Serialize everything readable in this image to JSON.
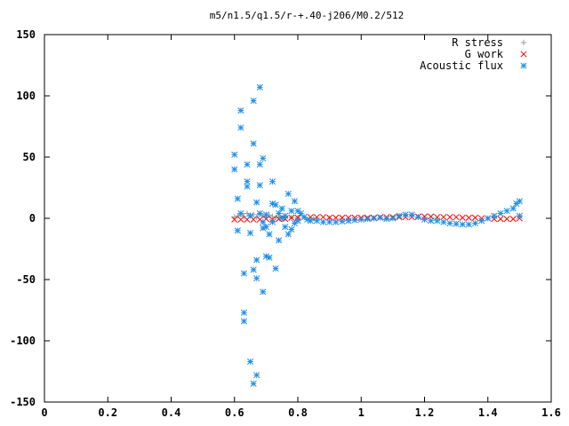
{
  "chart_data": {
    "type": "scatter",
    "title": "m5/n1.5/q1.5/r-+.40-j206/M0.2/512",
    "xlabel": "",
    "ylabel": "",
    "xlim": [
      0,
      1.6
    ],
    "ylim": [
      -150,
      150
    ],
    "x_ticks": [
      "0",
      "0.2",
      "0.4",
      "0.6",
      "0.8",
      "1",
      "1.2",
      "1.4",
      "1.6"
    ],
    "y_ticks": [
      "150",
      "100",
      "50",
      "0",
      "-50",
      "-100",
      "-150"
    ],
    "grid": false,
    "legend_position": "top-right",
    "series": [
      {
        "name": "R stress",
        "marker": "+",
        "color": "#a0a0a0",
        "points": [
          [
            0.6,
            1.0
          ],
          [
            0.61,
            2.0
          ],
          [
            0.62,
            3.0
          ],
          [
            0.63,
            1.5
          ],
          [
            0.64,
            4.0
          ],
          [
            0.65,
            2.5
          ],
          [
            0.66,
            3.0
          ],
          [
            0.67,
            1.0
          ],
          [
            0.68,
            3.5
          ],
          [
            0.69,
            2.0
          ],
          [
            0.7,
            1.0
          ],
          [
            0.71,
            2.5
          ],
          [
            0.72,
            1.5
          ],
          [
            0.73,
            0.5
          ],
          [
            0.74,
            1.0
          ],
          [
            0.76,
            0.5
          ],
          [
            0.78,
            0.5
          ],
          [
            0.8,
            0.3
          ],
          [
            0.85,
            0.1
          ],
          [
            0.9,
            0.0
          ]
        ]
      },
      {
        "name": "G work",
        "marker": "x",
        "color": "#ff0000",
        "points": [
          [
            0.6,
            -1.0
          ],
          [
            0.62,
            -1.0
          ],
          [
            0.64,
            -1.0
          ],
          [
            0.66,
            -1.0
          ],
          [
            0.68,
            -1.0
          ],
          [
            0.7,
            -0.5
          ],
          [
            0.72,
            -1.0
          ],
          [
            0.74,
            -0.5
          ],
          [
            0.76,
            -0.5
          ],
          [
            0.78,
            0.5
          ],
          [
            0.8,
            0.5
          ],
          [
            0.82,
            1.0
          ],
          [
            0.84,
            1.0
          ],
          [
            0.86,
            1.0
          ],
          [
            0.88,
            1.0
          ],
          [
            0.9,
            0.5
          ],
          [
            0.92,
            0.5
          ],
          [
            0.94,
            0.5
          ],
          [
            0.96,
            0.5
          ],
          [
            0.98,
            0.5
          ],
          [
            1.0,
            0.5
          ],
          [
            1.02,
            0.5
          ],
          [
            1.04,
            0.5
          ],
          [
            1.06,
            1.0
          ],
          [
            1.08,
            1.0
          ],
          [
            1.1,
            1.0
          ],
          [
            1.12,
            1.0
          ],
          [
            1.14,
            1.0
          ],
          [
            1.16,
            1.0
          ],
          [
            1.18,
            1.5
          ],
          [
            1.2,
            1.5
          ],
          [
            1.22,
            1.5
          ],
          [
            1.24,
            1.0
          ],
          [
            1.26,
            1.0
          ],
          [
            1.28,
            1.0
          ],
          [
            1.3,
            1.0
          ],
          [
            1.32,
            0.5
          ],
          [
            1.34,
            0.5
          ],
          [
            1.36,
            0.5
          ],
          [
            1.38,
            0.0
          ],
          [
            1.4,
            0.0
          ],
          [
            1.42,
            -0.5
          ],
          [
            1.44,
            -0.5
          ],
          [
            1.46,
            -0.5
          ],
          [
            1.48,
            -0.5
          ],
          [
            1.5,
            0.0
          ]
        ]
      },
      {
        "name": "Acoustic flux",
        "marker": "*",
        "color": "#1e8fe6",
        "points": [
          [
            0.6,
            52
          ],
          [
            0.6,
            40
          ],
          [
            0.61,
            16
          ],
          [
            0.61,
            -10
          ],
          [
            0.62,
            4
          ],
          [
            0.62,
            88
          ],
          [
            0.62,
            74
          ],
          [
            0.63,
            -45
          ],
          [
            0.63,
            -77
          ],
          [
            0.63,
            -84
          ],
          [
            0.64,
            44
          ],
          [
            0.64,
            30
          ],
          [
            0.64,
            26
          ],
          [
            0.65,
            2
          ],
          [
            0.65,
            -12
          ],
          [
            0.65,
            -117
          ],
          [
            0.66,
            61
          ],
          [
            0.66,
            96
          ],
          [
            0.66,
            -42
          ],
          [
            0.66,
            -135
          ],
          [
            0.67,
            13
          ],
          [
            0.67,
            -34
          ],
          [
            0.67,
            -128
          ],
          [
            0.67,
            -49
          ],
          [
            0.68,
            107
          ],
          [
            0.68,
            44
          ],
          [
            0.68,
            27
          ],
          [
            0.68,
            4
          ],
          [
            0.69,
            49
          ],
          [
            0.69,
            -3
          ],
          [
            0.69,
            -8
          ],
          [
            0.69,
            -60
          ],
          [
            0.7,
            -7
          ],
          [
            0.7,
            -31
          ],
          [
            0.7,
            3
          ],
          [
            0.71,
            -13
          ],
          [
            0.71,
            -32
          ],
          [
            0.72,
            30
          ],
          [
            0.72,
            12
          ],
          [
            0.72,
            -3
          ],
          [
            0.73,
            -41
          ],
          [
            0.73,
            11
          ],
          [
            0.74,
            4
          ],
          [
            0.74,
            -18
          ],
          [
            0.75,
            0
          ],
          [
            0.75,
            8
          ],
          [
            0.76,
            -7
          ],
          [
            0.76,
            2
          ],
          [
            0.77,
            -13
          ],
          [
            0.77,
            20
          ],
          [
            0.78,
            6
          ],
          [
            0.78,
            -9
          ],
          [
            0.79,
            14
          ],
          [
            0.79,
            -4
          ],
          [
            0.8,
            6
          ],
          [
            0.8,
            -2
          ],
          [
            0.81,
            4
          ],
          [
            0.82,
            1
          ],
          [
            0.83,
            -1
          ],
          [
            0.84,
            -2
          ],
          [
            0.86,
            -2
          ],
          [
            0.88,
            -3
          ],
          [
            0.9,
            -3
          ],
          [
            0.92,
            -3
          ],
          [
            0.94,
            -2.5
          ],
          [
            0.96,
            -2
          ],
          [
            0.98,
            -1.5
          ],
          [
            1.0,
            -1
          ],
          [
            1.02,
            -0.5
          ],
          [
            1.04,
            0
          ],
          [
            1.06,
            0.5
          ],
          [
            1.08,
            -0.5
          ],
          [
            1.1,
            0
          ],
          [
            1.12,
            2
          ],
          [
            1.14,
            3
          ],
          [
            1.16,
            3
          ],
          [
            1.18,
            1
          ],
          [
            1.2,
            -1
          ],
          [
            1.22,
            -2
          ],
          [
            1.24,
            -2
          ],
          [
            1.26,
            -3
          ],
          [
            1.28,
            -4
          ],
          [
            1.3,
            -4.5
          ],
          [
            1.32,
            -5
          ],
          [
            1.34,
            -5
          ],
          [
            1.36,
            -4
          ],
          [
            1.38,
            -2
          ],
          [
            1.4,
            0
          ],
          [
            1.42,
            2
          ],
          [
            1.44,
            4
          ],
          [
            1.46,
            6
          ],
          [
            1.48,
            8
          ],
          [
            1.49,
            12
          ],
          [
            1.5,
            14
          ],
          [
            1.5,
            2
          ]
        ]
      }
    ]
  }
}
